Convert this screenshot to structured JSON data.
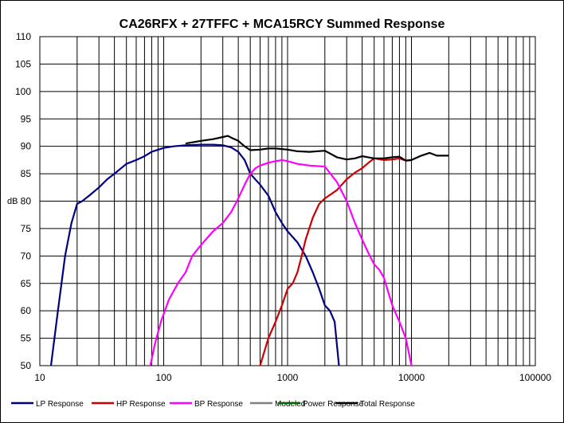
{
  "chart_data": {
    "type": "line",
    "title": "CA26RFX + 27TFFC + MCA15RCY  Summed Response",
    "ylabel": "dB",
    "xlabel": "",
    "xscale": "log",
    "xlim": [
      10,
      100000
    ],
    "ylim": [
      50,
      110
    ],
    "x_ticks": [
      10,
      100,
      1000,
      10000,
      100000
    ],
    "x_tick_labels": [
      "10",
      "100",
      "1000",
      "10000",
      "100000"
    ],
    "y_ticks": [
      50,
      55,
      60,
      65,
      70,
      75,
      80,
      85,
      90,
      95,
      100,
      105,
      110
    ],
    "y_tick_labels": [
      "50",
      "55",
      "60",
      "65",
      "70",
      "75",
      "80",
      "85",
      "90",
      "95",
      "100",
      "105",
      "110"
    ],
    "grid": true,
    "legend_position": "bottom",
    "series": [
      {
        "name": "LP Response",
        "color": "#000080",
        "x": [
          12.3,
          14,
          16,
          18,
          20,
          22,
          25,
          30,
          35,
          40,
          50,
          60,
          70,
          80,
          100,
          120,
          150,
          200,
          250,
          300,
          350,
          400,
          450,
          500,
          600,
          700,
          800,
          900,
          1000,
          1200,
          1400,
          1600,
          1800,
          2000,
          2200,
          2400,
          2600
        ],
        "y": [
          50,
          60,
          70,
          76,
          79.5,
          80,
          81,
          82.5,
          84,
          85,
          86.8,
          87.5,
          88.2,
          89,
          89.7,
          90,
          90.2,
          90.3,
          90.3,
          90.2,
          89.8,
          89,
          87.5,
          85,
          83,
          81,
          78,
          76,
          74.5,
          72.5,
          70,
          67,
          64,
          61,
          60,
          58,
          50
        ]
      },
      {
        "name": "HP Response",
        "color": "#cc0000",
        "x": [
          600,
          700,
          800,
          900,
          1000,
          1100,
          1200,
          1300,
          1400,
          1600,
          1800,
          2000,
          2500,
          3000,
          3500,
          4000,
          4500,
          5000,
          6000,
          7000,
          8000,
          9000,
          10000
        ],
        "y": [
          50,
          55,
          58,
          61,
          64,
          65,
          67,
          70,
          73,
          77,
          79.5,
          80.5,
          82,
          84,
          85.2,
          86,
          87,
          87.8,
          87.5,
          87.6,
          87.8,
          87.4,
          87.5
        ]
      },
      {
        "name": "BP Response",
        "color": "#ff00ff",
        "x": [
          78,
          85,
          95,
          110,
          130,
          150,
          170,
          200,
          250,
          300,
          350,
          400,
          450,
          500,
          550,
          600,
          700,
          800,
          900,
          1000,
          1200,
          1500,
          2000,
          2500,
          3000,
          3500,
          4000,
          4500,
          5000,
          5500,
          6000,
          7000,
          8000,
          9000,
          10000
        ],
        "y": [
          50,
          54,
          58,
          62,
          65,
          67,
          70,
          72,
          74.5,
          76,
          78,
          80.5,
          83,
          85,
          86,
          86.5,
          87,
          87.3,
          87.5,
          87.3,
          86.8,
          86.5,
          86.3,
          83.5,
          80,
          76,
          73,
          70.5,
          68.5,
          67.5,
          66,
          61,
          58,
          55,
          50
        ]
      },
      {
        "name": "Modeled",
        "color": "#808080",
        "x": [],
        "y": []
      },
      {
        "name": "Power Response",
        "color": "#006400",
        "x": [],
        "y": []
      },
      {
        "name": "Total Response",
        "color": "#000000",
        "x": [
          150,
          200,
          250,
          300,
          330,
          350,
          400,
          450,
          500,
          600,
          700,
          800,
          1000,
          1200,
          1500,
          2000,
          2500,
          3000,
          3500,
          4000,
          5000,
          6000,
          7000,
          8000,
          9000,
          10000,
          12000,
          14000,
          16000,
          20000
        ],
        "y": [
          90.5,
          91,
          91.3,
          91.7,
          91.9,
          91.6,
          91,
          90,
          89.3,
          89.4,
          89.6,
          89.6,
          89.4,
          89.1,
          89,
          89.2,
          88,
          87.6,
          87.8,
          88.2,
          87.8,
          87.8,
          88,
          88.1,
          87.4,
          87.5,
          88.3,
          88.8,
          88.3,
          88.3
        ]
      }
    ]
  }
}
